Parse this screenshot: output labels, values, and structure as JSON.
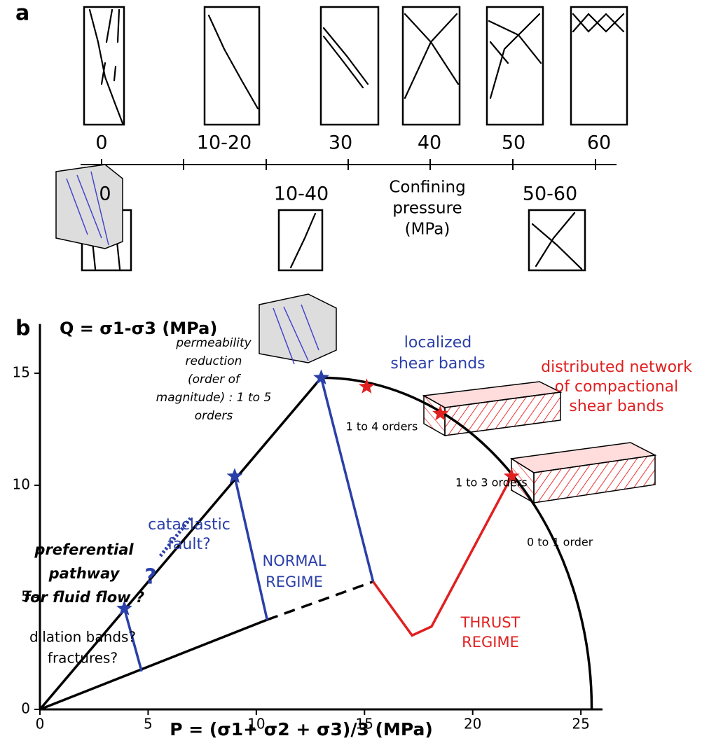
{
  "panel_a": {
    "label": "a",
    "top_labels": [
      "0",
      "10-20",
      "30",
      "40",
      "50",
      "60"
    ],
    "bottom_labels": [
      "0",
      "10-40",
      "50-60"
    ],
    "axis_title": [
      "Confining",
      "pressure",
      "(MPa)"
    ]
  },
  "panel_b": {
    "label": "b",
    "y_title": "Q = σ1-σ3  (MPa)",
    "x_title": "P =  (σ1+ σ2 + σ3)/3  (MPa)",
    "xlim": [
      0,
      26
    ],
    "ylim": [
      0,
      17.2
    ],
    "xticks": [
      0,
      5,
      10,
      15,
      20,
      25
    ],
    "yticks": [
      0,
      5,
      10,
      15
    ],
    "blue_stars": [
      {
        "x": 3.9,
        "y": 4.5
      },
      {
        "x": 9.0,
        "y": 10.4
      },
      {
        "x": 13.0,
        "y": 14.8
      }
    ],
    "red_stars": [
      {
        "x": 15.1,
        "y": 14.4
      },
      {
        "x": 18.5,
        "y": 13.2
      },
      {
        "x": 21.8,
        "y": 10.4
      }
    ],
    "envelope_end_x": 25.5,
    "blue_lines": [
      {
        "x": [
          3.9,
          4.7
        ],
        "y": [
          4.5,
          1.7
        ]
      },
      {
        "x": [
          9.0,
          10.5
        ],
        "y": [
          10.4,
          4.0
        ]
      },
      {
        "x": [
          13.0,
          15.4
        ],
        "y": [
          14.8,
          5.7
        ]
      }
    ],
    "lower_solid": {
      "x": [
        0,
        10.5
      ],
      "y": [
        0,
        4.0
      ]
    },
    "lower_dashed": {
      "x": [
        10.5,
        15.4
      ],
      "y": [
        4.0,
        5.7
      ]
    },
    "red_path": {
      "x": [
        15.4,
        17.2,
        18.1,
        21.8
      ],
      "y": [
        5.7,
        3.3,
        3.7,
        10.4
      ]
    },
    "annotations": {
      "localized": [
        "localized",
        "shear bands"
      ],
      "distributed": [
        "distributed network",
        "of compactional",
        "shear bands"
      ],
      "permeability": [
        "permeability",
        "reduction",
        "(order of",
        "magnitude) : 1 to 5",
        "orders"
      ],
      "orders_1_4": "1 to 4 orders",
      "orders_1_3": "1 to 3 orders",
      "orders_0_1": "0 to 1 order",
      "cataclastic": [
        "cataclastic",
        "fault?"
      ],
      "question": "?",
      "normal": [
        "NORMAL",
        "REGIME"
      ],
      "thrust": [
        "THRUST",
        "REGIME"
      ],
      "pathway": [
        "preferential",
        "pathway",
        "for fluid flow ?"
      ],
      "dilation": [
        "dilation bands?",
        "fractures?"
      ]
    }
  }
}
